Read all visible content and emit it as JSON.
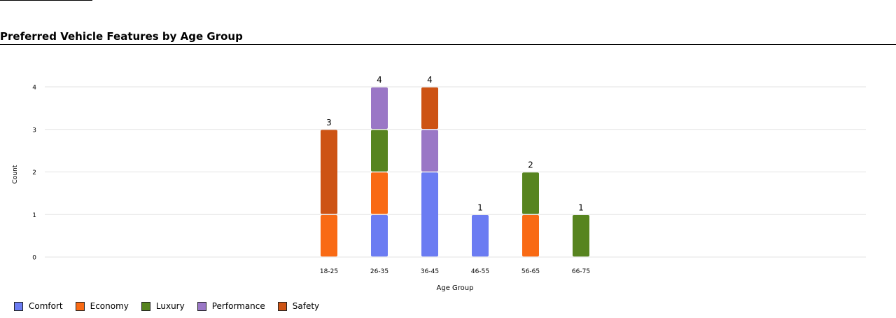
{
  "page": {
    "title": "Preferred Vehicle Features by Age Group"
  },
  "chart_data": {
    "type": "bar",
    "stacked": true,
    "categories": [
      "18-25",
      "26-35",
      "36-45",
      "46-55",
      "56-65",
      "66-75"
    ],
    "series": [
      {
        "name": "Comfort",
        "color": "#6b7cf2",
        "values": [
          0,
          1,
          2,
          1,
          0,
          0
        ]
      },
      {
        "name": "Economy",
        "color": "#f96a14",
        "values": [
          1,
          1,
          0,
          0,
          1,
          0
        ]
      },
      {
        "name": "Luxury",
        "color": "#57841f",
        "values": [
          0,
          1,
          0,
          0,
          1,
          1
        ]
      },
      {
        "name": "Performance",
        "color": "#9a77c6",
        "values": [
          0,
          1,
          1,
          0,
          0,
          0
        ]
      },
      {
        "name": "Safety",
        "color": "#cd5314",
        "values": [
          2,
          0,
          1,
          0,
          0,
          0
        ]
      }
    ],
    "totals": [
      3,
      4,
      4,
      1,
      2,
      1
    ],
    "xlabel": "Age Group",
    "ylabel": "Count",
    "ylim": [
      0,
      4
    ],
    "yticks": [
      0,
      1,
      2,
      3,
      4
    ],
    "grid": true,
    "legend": "bottom-left"
  }
}
